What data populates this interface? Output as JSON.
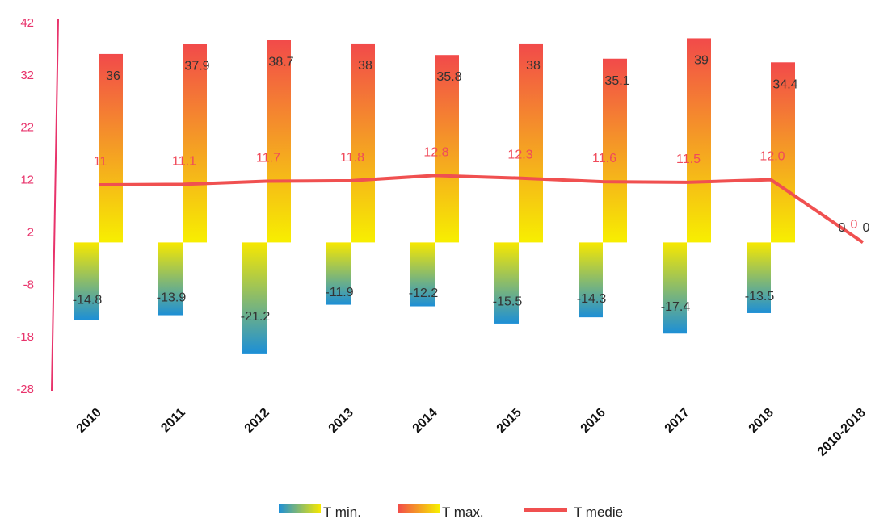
{
  "chart_data": {
    "type": "bar",
    "categories": [
      "2010",
      "2011",
      "2012",
      "2013",
      "2014",
      "2015",
      "2016",
      "2017",
      "2018",
      "2010-2018"
    ],
    "series": [
      {
        "name": "T min.",
        "type": "bar",
        "values": [
          -14.8,
          -13.9,
          -21.2,
          -11.9,
          -12.2,
          -15.5,
          -14.3,
          -17.4,
          -13.5,
          0
        ],
        "labels": [
          "-14.8",
          "-13.9",
          "-21.2",
          "-11.9",
          "-12.2",
          "-15.5",
          "-14.3",
          "-17.4",
          "-13.5",
          "0"
        ]
      },
      {
        "name": "T max.",
        "type": "bar",
        "values": [
          36,
          37.9,
          38.7,
          38,
          35.8,
          38,
          35.1,
          39,
          34.4,
          0
        ],
        "labels": [
          "36",
          "37.9",
          "38.7",
          "38",
          "35.8",
          "38",
          "35.1",
          "39",
          "34.4",
          "0"
        ]
      },
      {
        "name": "T medie",
        "type": "line",
        "values": [
          11,
          11.1,
          11.7,
          11.8,
          12.8,
          12.3,
          11.6,
          11.5,
          12.0,
          0
        ],
        "labels": [
          "11",
          "11.1",
          "11.7",
          "11.8",
          "12.8",
          "12.3",
          "11.6",
          "11.5",
          "12.0",
          "0"
        ]
      }
    ],
    "yticks": [
      "42",
      "32",
      "22",
      "12",
      "2",
      "-8",
      "-18",
      "-28"
    ],
    "ylim": [
      -28,
      42
    ],
    "legend_position": "bottom",
    "colors": {
      "min_top": "#f7e800",
      "min_bottom": "#1d8fd6",
      "max_top": "#f24a4a",
      "max_bottom": "#f7ef00",
      "line": "#f05050",
      "axis": "#e8336b"
    }
  }
}
